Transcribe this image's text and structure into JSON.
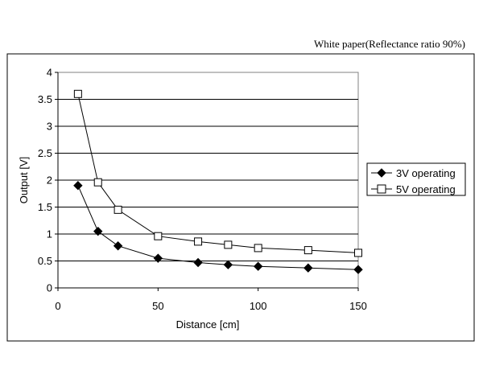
{
  "chart_data": {
    "type": "line",
    "subtitle": "White paper(Reflectance ratio 90%)",
    "xlabel": "Distance [cm]",
    "ylabel": "Output [V]",
    "xlim": [
      0,
      150
    ],
    "ylim": [
      0,
      4
    ],
    "x_ticks": [
      "0",
      "50",
      "100",
      "150"
    ],
    "y_ticks": [
      "0",
      "0.5",
      "1",
      "1.5",
      "2",
      "2.5",
      "3",
      "3.5",
      "4"
    ],
    "grid": "horizontal",
    "legend_position": "right",
    "series": [
      {
        "name": "3V operating",
        "marker": "filled-diamond",
        "color": "#000000",
        "x": [
          10,
          20,
          30,
          50,
          70,
          85,
          100,
          125,
          150
        ],
        "y": [
          1.9,
          1.05,
          0.78,
          0.55,
          0.47,
          0.43,
          0.4,
          0.37,
          0.34
        ]
      },
      {
        "name": "5V operating",
        "marker": "open-square",
        "color": "#000000",
        "x": [
          10,
          20,
          30,
          50,
          70,
          85,
          100,
          125,
          150
        ],
        "y": [
          3.6,
          1.96,
          1.45,
          0.96,
          0.86,
          0.8,
          0.74,
          0.7,
          0.65
        ]
      }
    ]
  }
}
